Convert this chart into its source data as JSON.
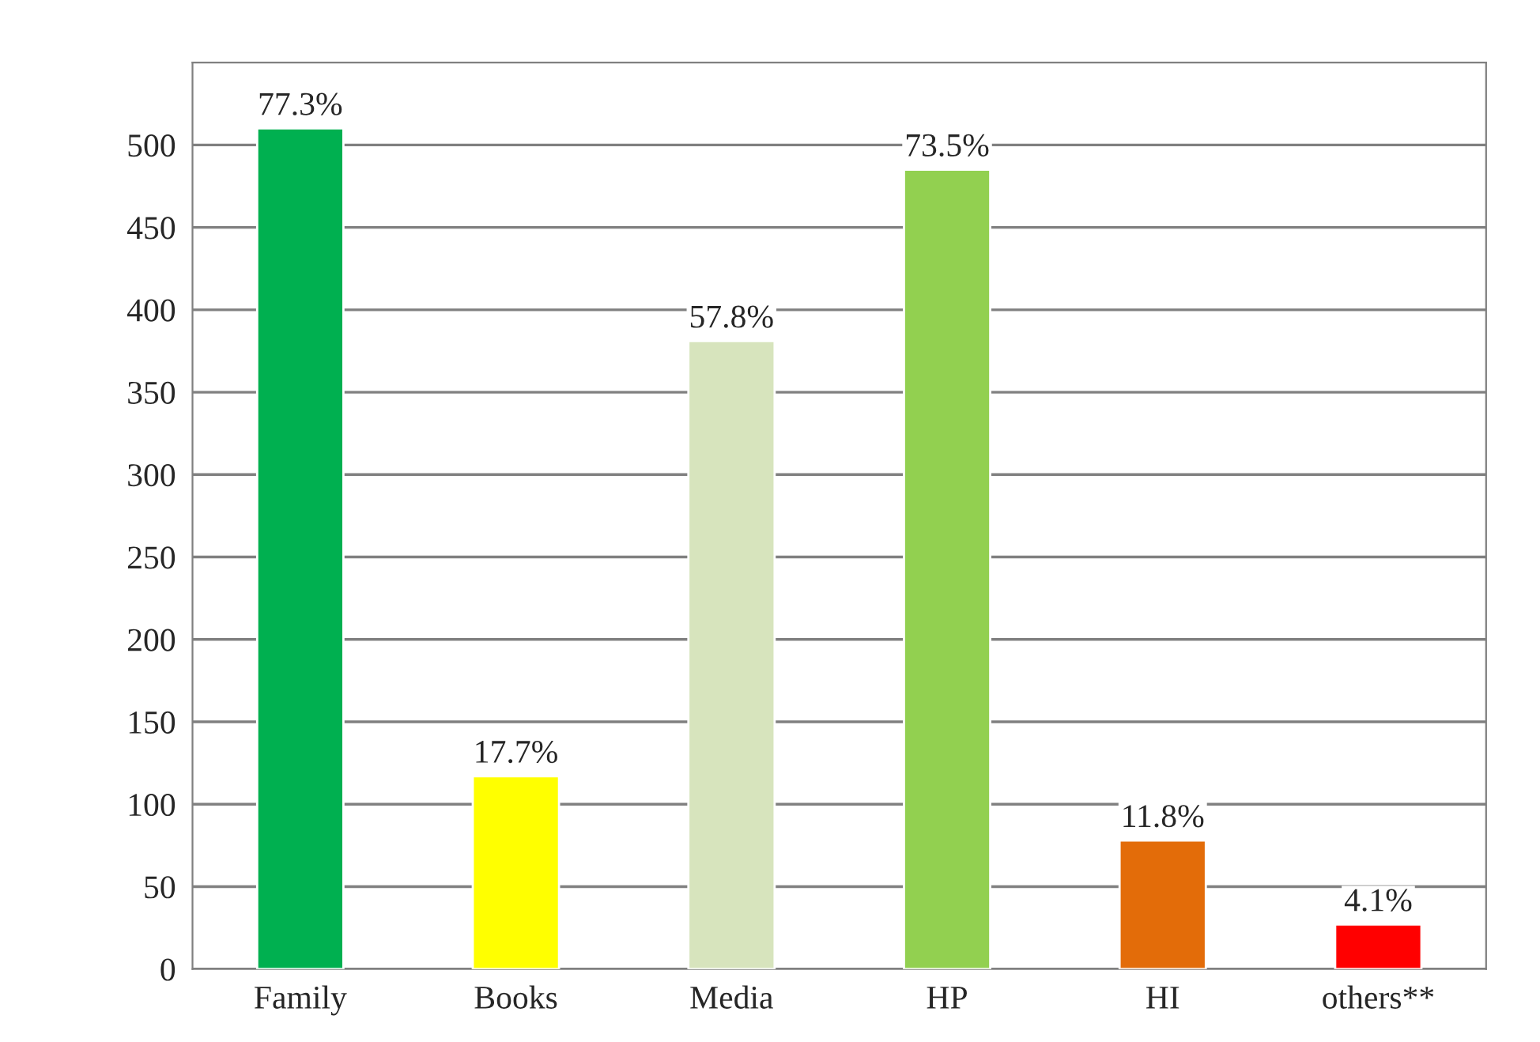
{
  "chart_data": {
    "type": "bar",
    "categories": [
      "Family",
      "Books",
      "Media",
      "HP",
      "HI",
      "others**"
    ],
    "values": [
      510,
      117,
      381,
      485,
      78,
      27
    ],
    "colors": [
      "#00b050",
      "#ffff00",
      "#d7e4bd",
      "#92d050",
      "#e36c09",
      "#ff0000"
    ],
    "annotations": [
      {
        "text": "77.3%",
        "x": "Family",
        "y": 510
      },
      {
        "text": "17.7%",
        "x": "Books",
        "y": 117
      },
      {
        "text": "57.8%",
        "x": "Media",
        "y": 381
      },
      {
        "text": "73.5%",
        "x": "HP",
        "y": 485
      },
      {
        "text": "11.8%",
        "x": "HI",
        "y": 78
      },
      {
        "text": "4.1%",
        "x": "others**",
        "y": 27
      }
    ],
    "ylim": [
      0,
      550
    ],
    "yticks": [
      0,
      50,
      100,
      150,
      200,
      250,
      300,
      350,
      400,
      450,
      500
    ],
    "grid": "y",
    "legend": false
  }
}
